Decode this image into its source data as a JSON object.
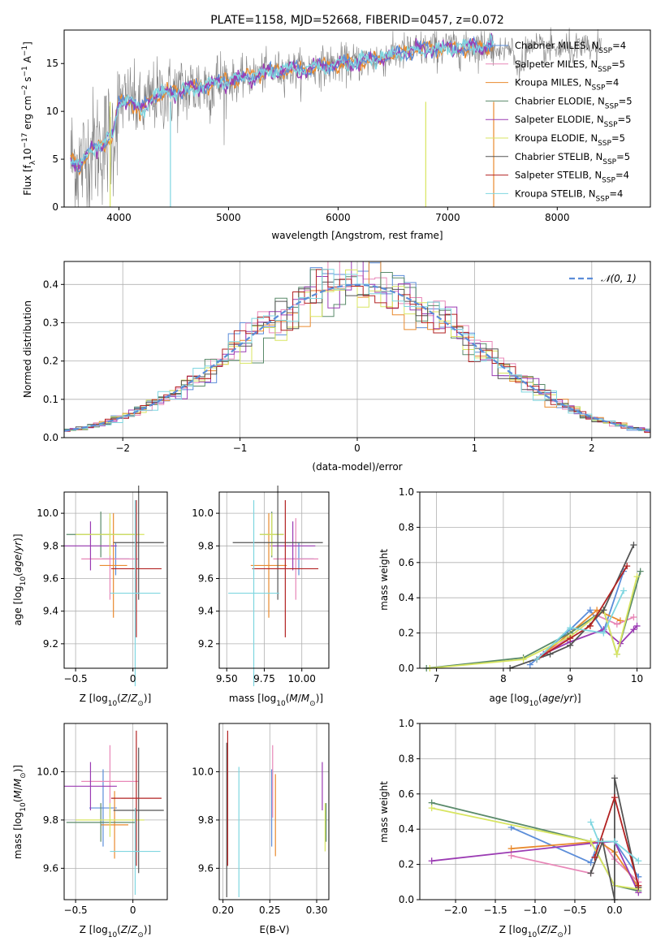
{
  "colors": {
    "series": [
      "#5b8dd9",
      "#e887b8",
      "#e98a2e",
      "#5a8a6a",
      "#9b3bb3",
      "#d8e560",
      "#555555",
      "#b22222",
      "#7fd6e0"
    ],
    "spectrum": "#808080",
    "gaussian": "#5b8dd9",
    "grid": "#b0b0b0"
  },
  "chart_data": [
    {
      "id": "spectrum",
      "type": "line",
      "title": "PLATE=1158, MJD=52668, FIBERID=0457, z=0.072",
      "xlabel": "wavelength [Angstrom, rest frame]",
      "ylabel": "Flux [f_λ10^-17 erg cm^-2 s^-1 A^-1]",
      "xlim": [
        3500,
        8850
      ],
      "ylim": [
        0,
        18.5
      ],
      "xticks": [
        4000,
        5000,
        6000,
        7000,
        8000
      ],
      "yticks": [
        0,
        5,
        10,
        15
      ],
      "grid": false,
      "legend_placement": "right",
      "legend": [
        "Chabrier MILES, N_SSP=4",
        "Salpeter MILES, N_SSP=5",
        "Kroupa MILES, N_SSP=4",
        "Chabrier ELODIE, N_SSP=5",
        "Salpeter ELODIE, N_SSP=5",
        "Kroupa ELODIE, N_SSP=5",
        "Chabrier STELIB, N_SSP=5",
        "Salpeter STELIB, N_SSP=4",
        "Kroupa STELIB, N_SSP=4"
      ],
      "model_continuum": [
        [
          3560,
          5.0
        ],
        [
          3650,
          4.3
        ],
        [
          3750,
          6.0
        ],
        [
          3850,
          6.6
        ],
        [
          3950,
          7.6
        ],
        [
          4000,
          11.0
        ],
        [
          4100,
          11.3
        ],
        [
          4200,
          10.0
        ],
        [
          4300,
          11.5
        ],
        [
          4500,
          12.0
        ],
        [
          4700,
          12.5
        ],
        [
          4900,
          13.0
        ],
        [
          5100,
          13.3
        ],
        [
          5300,
          14.0
        ],
        [
          5500,
          14.3
        ],
        [
          5700,
          14.4
        ],
        [
          5900,
          14.8
        ],
        [
          6100,
          15.0
        ],
        [
          6300,
          15.4
        ],
        [
          6500,
          15.9
        ],
        [
          6700,
          16.4
        ],
        [
          6900,
          16.6
        ],
        [
          7100,
          16.7
        ],
        [
          7300,
          16.8
        ],
        [
          7400,
          17.0
        ]
      ]
    },
    {
      "id": "residuals",
      "type": "histogram",
      "xlabel": "(data-model)/error",
      "ylabel": "Normed distribution",
      "xlim": [
        -2.5,
        2.5
      ],
      "ylim": [
        0,
        0.46
      ],
      "xticks": [
        -2,
        -1,
        0,
        1,
        2
      ],
      "yticks": [
        0.0,
        0.1,
        0.2,
        0.3,
        0.4
      ],
      "grid": true,
      "legend_placement": "top-right",
      "legend": [
        "𝒩(0, 1)"
      ],
      "bin_width": 0.1
    },
    {
      "id": "age-vs-Z",
      "type": "errorbar",
      "xlabel": "Z [log10(Z/Z⊙)]",
      "ylabel": "age [log10(age/yr)]",
      "xlim": [
        -0.6,
        0.3
      ],
      "ylim": [
        9.05,
        10.13
      ],
      "xticks": [
        -0.5,
        0.0
      ],
      "yticks": [
        9.2,
        9.4,
        9.6,
        9.8,
        10.0
      ],
      "grid": true,
      "points": [
        {
          "x": -0.15,
          "xerr": 0.12,
          "y": 9.72,
          "yerr": 0.1
        },
        {
          "x": -0.2,
          "xerr": 0.25,
          "y": 9.72,
          "yerr": 0.25
        },
        {
          "x": -0.17,
          "xerr": 0.12,
          "y": 9.68,
          "yerr": 0.32
        },
        {
          "x": -0.28,
          "xerr": 0.3,
          "y": 9.87,
          "yerr": 0.14
        },
        {
          "x": -0.37,
          "xerr": 0.23,
          "y": 9.8,
          "yerr": 0.15
        },
        {
          "x": -0.2,
          "xerr": 0.3,
          "y": 9.87,
          "yerr": 0.13
        },
        {
          "x": 0.05,
          "xerr": 0.22,
          "y": 9.82,
          "yerr": 0.35
        },
        {
          "x": 0.03,
          "xerr": 0.22,
          "y": 9.66,
          "yerr": 0.42
        },
        {
          "x": 0.02,
          "xerr": 0.22,
          "y": 9.51,
          "yerr": 0.57
        }
      ]
    },
    {
      "id": "age-vs-mass",
      "type": "errorbar",
      "xlabel": "mass [log10(M/M⊙)]",
      "ylabel": "",
      "xlim": [
        9.45,
        10.18
      ],
      "ylim": [
        9.05,
        10.13
      ],
      "xticks": [
        9.5,
        9.75,
        10.0
      ],
      "xticklabels": [
        "9.50",
        "9.75",
        "10.00"
      ],
      "yticks": [
        9.2,
        9.4,
        9.6,
        9.8,
        10.0
      ],
      "grid": true,
      "points": [
        {
          "x": 9.98,
          "xerr": 0.1,
          "y": 9.72,
          "yerr": 0.1
        },
        {
          "x": 9.96,
          "xerr": 0.15,
          "y": 9.72,
          "yerr": 0.25
        },
        {
          "x": 9.78,
          "xerr": 0.12,
          "y": 9.68,
          "yerr": 0.32
        },
        {
          "x": 9.8,
          "xerr": 0.08,
          "y": 9.87,
          "yerr": 0.14
        },
        {
          "x": 9.94,
          "xerr": 0.15,
          "y": 9.8,
          "yerr": 0.15
        },
        {
          "x": 9.8,
          "xerr": 0.08,
          "y": 9.87,
          "yerr": 0.13
        },
        {
          "x": 9.84,
          "xerr": 0.3,
          "y": 9.82,
          "yerr": 0.35
        },
        {
          "x": 9.89,
          "xerr": 0.22,
          "y": 9.66,
          "yerr": 0.42
        },
        {
          "x": 9.68,
          "xerr": 0.17,
          "y": 9.51,
          "yerr": 0.57
        }
      ]
    },
    {
      "id": "weight-vs-age",
      "type": "line",
      "xlabel": "age [log10(age/yr)]",
      "ylabel": "mass weight",
      "xlim": [
        6.75,
        10.2
      ],
      "ylim": [
        0,
        1.0
      ],
      "xticks": [
        7,
        8,
        9,
        10
      ],
      "yticks": [
        0.0,
        0.2,
        0.4,
        0.6,
        0.8,
        1.0
      ],
      "grid": true,
      "series": [
        {
          "x": [
            8.4,
            9.0,
            9.3,
            9.5,
            9.8
          ],
          "y": [
            0.02,
            0.22,
            0.33,
            0.21,
            0.55
          ]
        },
        {
          "x": [
            8.5,
            9.0,
            9.4,
            9.7,
            9.95
          ],
          "y": [
            0.05,
            0.18,
            0.3,
            0.25,
            0.29
          ]
        },
        {
          "x": [
            8.5,
            9.0,
            9.4,
            9.75
          ],
          "y": [
            0.05,
            0.2,
            0.33,
            0.27
          ]
        },
        {
          "x": [
            6.85,
            8.3,
            9.0,
            9.5,
            9.7,
            10.05
          ],
          "y": [
            0.0,
            0.06,
            0.2,
            0.33,
            0.08,
            0.55
          ]
        },
        {
          "x": [
            8.6,
            9.0,
            9.5,
            9.75,
            9.95,
            10.0
          ],
          "y": [
            0.08,
            0.15,
            0.22,
            0.14,
            0.22,
            0.24
          ]
        },
        {
          "x": [
            6.9,
            8.3,
            9.0,
            9.5,
            9.7,
            10.0
          ],
          "y": [
            0.0,
            0.05,
            0.18,
            0.33,
            0.08,
            0.52
          ]
        },
        {
          "x": [
            8.1,
            8.7,
            9.0,
            9.5,
            9.95
          ],
          "y": [
            0.0,
            0.08,
            0.13,
            0.33,
            0.7
          ]
        },
        {
          "x": [
            8.5,
            9.0,
            9.3,
            9.85
          ],
          "y": [
            0.05,
            0.17,
            0.24,
            0.58
          ]
        },
        {
          "x": [
            8.5,
            9.0,
            9.5,
            9.8
          ],
          "y": [
            0.05,
            0.23,
            0.2,
            0.44
          ]
        }
      ]
    },
    {
      "id": "mass-vs-Z",
      "type": "errorbar",
      "xlabel": "Z [log10(Z/Z⊙)]",
      "ylabel": "mass [log10(M/M⊙)]",
      "xlim": [
        -0.6,
        0.3
      ],
      "ylim": [
        9.47,
        10.2
      ],
      "xticks": [
        -0.5,
        0.0
      ],
      "yticks": [
        9.6,
        9.8,
        10.0
      ],
      "grid": true,
      "points": [
        {
          "x": -0.26,
          "xerr": 0.12,
          "y": 9.85,
          "yerr": 0.16
        },
        {
          "x": -0.2,
          "xerr": 0.25,
          "y": 9.96,
          "yerr": 0.15
        },
        {
          "x": -0.16,
          "xerr": 0.12,
          "y": 9.78,
          "yerr": 0.14
        },
        {
          "x": -0.28,
          "xerr": 0.3,
          "y": 9.79,
          "yerr": 0.08
        },
        {
          "x": -0.37,
          "xerr": 0.23,
          "y": 9.94,
          "yerr": 0.1
        },
        {
          "x": -0.2,
          "xerr": 0.3,
          "y": 9.8,
          "yerr": 0.07
        },
        {
          "x": 0.05,
          "xerr": 0.22,
          "y": 9.84,
          "yerr": 0.26
        },
        {
          "x": 0.03,
          "xerr": 0.22,
          "y": 9.89,
          "yerr": 0.28
        },
        {
          "x": 0.02,
          "xerr": 0.22,
          "y": 9.67,
          "yerr": 0.18
        }
      ]
    },
    {
      "id": "mass-vs-ebv",
      "type": "errorbar",
      "xlabel": "E(B-V)",
      "ylabel": "",
      "xlim": [
        0.196,
        0.313
      ],
      "ylim": [
        9.47,
        10.2
      ],
      "xticks": [
        0.2,
        0.25,
        0.3
      ],
      "xticklabels": [
        "0.20",
        "0.25",
        "0.30"
      ],
      "yticks": [
        9.6,
        9.8,
        10.0
      ],
      "grid": true,
      "points": [
        {
          "x": 0.252,
          "y": 9.85,
          "yerr": 0.16
        },
        {
          "x": 0.253,
          "y": 9.96,
          "yerr": 0.15
        },
        {
          "x": 0.256,
          "y": 9.82,
          "yerr": 0.17
        },
        {
          "x": 0.31,
          "y": 9.79,
          "yerr": 0.08
        },
        {
          "x": 0.306,
          "y": 9.94,
          "yerr": 0.1
        },
        {
          "x": 0.309,
          "y": 9.77,
          "yerr": 0.1
        },
        {
          "x": 0.204,
          "y": 9.8,
          "yerr": 0.32
        },
        {
          "x": 0.205,
          "y": 9.89,
          "yerr": 0.28
        },
        {
          "x": 0.217,
          "y": 9.75,
          "yerr": 0.27
        }
      ]
    },
    {
      "id": "weight-vs-Z",
      "type": "line",
      "xlabel": "Z [log10(Z/Z⊙)]",
      "ylabel": "mass weight",
      "xlim": [
        -2.45,
        0.45
      ],
      "ylim": [
        0,
        1.0
      ],
      "xticks": [
        -2.0,
        -1.5,
        -1.0,
        -0.5,
        0.0
      ],
      "xticklabels": [
        "−2.0",
        "−1.5",
        "−1.0",
        "−0.5",
        "0.0"
      ],
      "yticks": [
        0.0,
        0.2,
        0.4,
        0.6,
        0.8,
        1.0
      ],
      "grid": true,
      "series": [
        {
          "x": [
            -1.3,
            -0.3,
            -0.2,
            0.0,
            0.3
          ],
          "y": [
            0.41,
            0.21,
            0.33,
            0.33,
            0.13
          ]
        },
        {
          "x": [
            -1.3,
            -0.3,
            -0.15,
            0.0,
            0.3
          ],
          "y": [
            0.25,
            0.15,
            0.33,
            0.23,
            0.1
          ]
        },
        {
          "x": [
            -1.3,
            -0.2,
            0.0,
            0.3
          ],
          "y": [
            0.29,
            0.33,
            0.27,
            0.07
          ]
        },
        {
          "x": [
            -2.3,
            -0.3,
            0.0,
            0.3
          ],
          "y": [
            0.55,
            0.33,
            0.08,
            0.05
          ]
        },
        {
          "x": [
            -2.3,
            -0.3,
            0.0,
            0.3
          ],
          "y": [
            0.22,
            0.32,
            0.33,
            0.04
          ]
        },
        {
          "x": [
            -2.3,
            -0.3,
            0.0,
            0.3
          ],
          "y": [
            0.52,
            0.33,
            0.08,
            0.06
          ]
        },
        {
          "x": [
            -0.3,
            -0.15,
            0.0,
            0.0,
            0.3
          ],
          "y": [
            0.15,
            0.33,
            0.0,
            0.69,
            0.07
          ]
        },
        {
          "x": [
            -0.25,
            0.0,
            0.3
          ],
          "y": [
            0.24,
            0.58,
            0.08
          ]
        },
        {
          "x": [
            -0.3,
            -0.2,
            0.0,
            0.3
          ],
          "y": [
            0.44,
            0.33,
            0.33,
            0.22
          ]
        }
      ]
    }
  ]
}
